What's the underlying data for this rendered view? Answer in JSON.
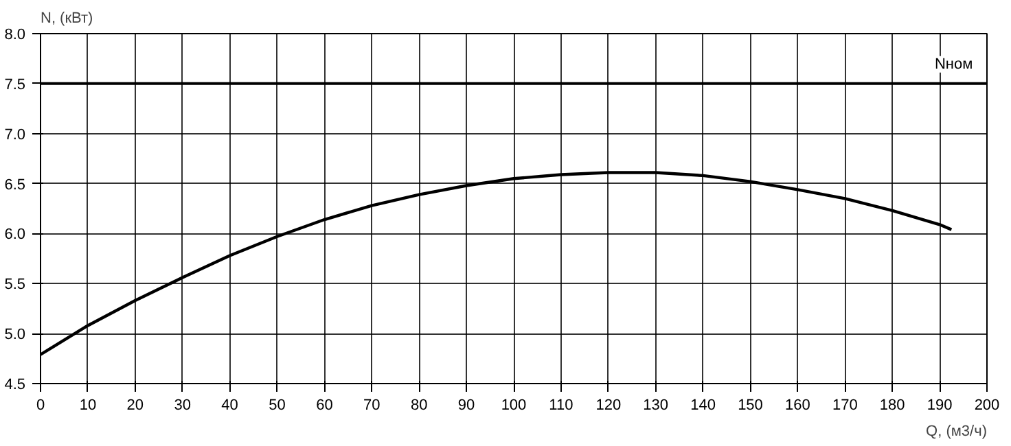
{
  "chart_data": {
    "type": "line",
    "ylabel": "N, (кВт)",
    "xlabel": "Q, (м3/ч)",
    "x": [
      0,
      10,
      20,
      30,
      40,
      50,
      60,
      70,
      80,
      90,
      100,
      110,
      120,
      130,
      140,
      150,
      160,
      170,
      180,
      190,
      192.5
    ],
    "series": [
      {
        "color": "#000000",
        "values": [
          4.79,
          5.08,
          5.33,
          5.56,
          5.78,
          5.97,
          6.14,
          6.28,
          6.39,
          6.48,
          6.55,
          6.59,
          6.61,
          6.61,
          6.58,
          6.52,
          6.44,
          6.35,
          6.23,
          6.09,
          6.04
        ]
      }
    ],
    "xlim": [
      0,
      200
    ],
    "xticks": [
      0,
      10,
      20,
      30,
      40,
      50,
      60,
      70,
      80,
      90,
      100,
      110,
      120,
      130,
      140,
      150,
      160,
      170,
      180,
      190,
      200
    ],
    "ylim": [
      4.5,
      8.0
    ],
    "yticks": [
      {
        "value": 4.5,
        "label": "4.5"
      },
      {
        "value": 5.0,
        "label": "5.0"
      },
      {
        "value": 5.5,
        "label": "5.5"
      },
      {
        "value": 6.0,
        "label": "6.0"
      },
      {
        "value": 6.5,
        "label": "6.5"
      },
      {
        "value": 7.0,
        "label": "7.0"
      },
      {
        "value": 7.5,
        "label": "7.5"
      },
      {
        "value": 8.0,
        "label": "8.0"
      }
    ],
    "ref_lines": [
      {
        "axis": "y",
        "value": 7.5,
        "label": "Nном",
        "color": "#000000",
        "line_style": "solid"
      }
    ],
    "grid": true,
    "line_style": "solid",
    "marker": "none"
  }
}
